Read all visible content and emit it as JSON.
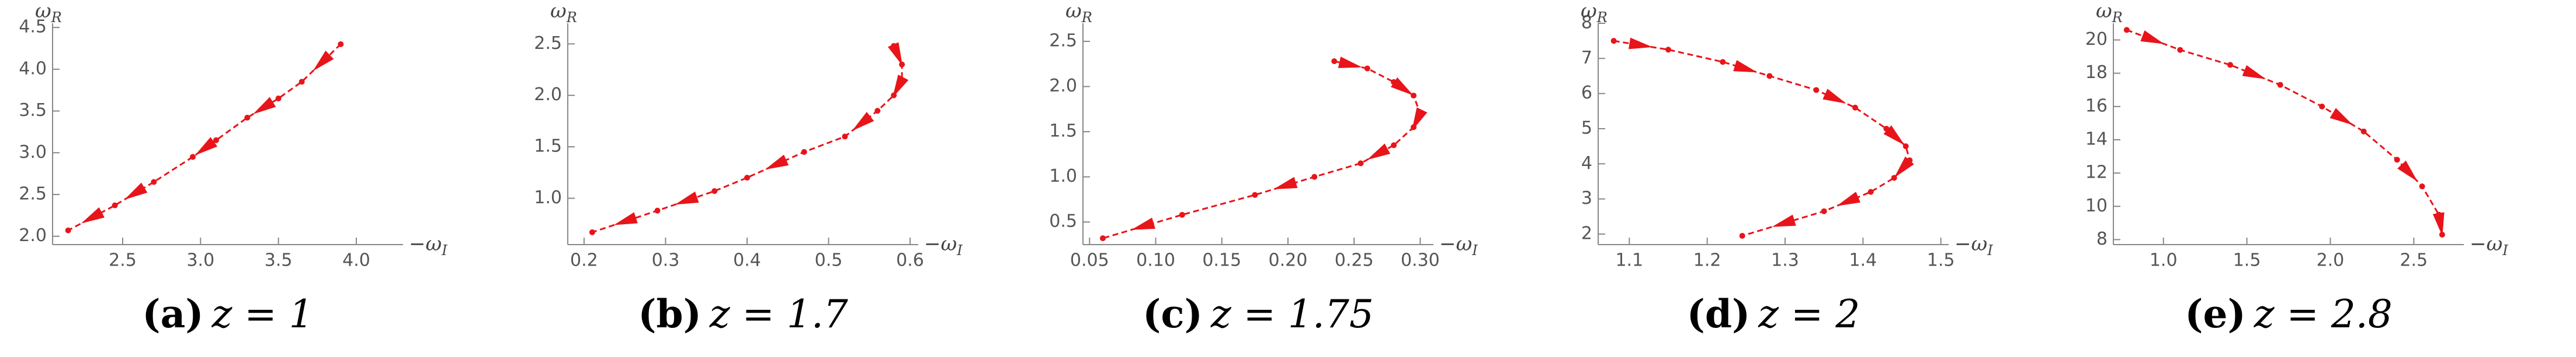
{
  "chart_data": [
    {
      "type": "line",
      "xlabel": {
        "base": "−ω",
        "sub": "I"
      },
      "ylabel": {
        "base": "ω",
        "sub": "R"
      },
      "caption_label": "(a)",
      "caption_math": "z = 1",
      "color": "#e8141a",
      "xlim": [
        2.05,
        4.3
      ],
      "ylim": [
        1.9,
        4.55
      ],
      "xticks": [
        2.5,
        {
          "value": 3,
          "label": "3.0"
        },
        3.5,
        {
          "value": 4,
          "label": "4.0"
        }
      ],
      "yticks": [
        {
          "value": 2,
          "label": "2.0"
        },
        2.5,
        {
          "value": 3,
          "label": "3.0"
        },
        3.5,
        {
          "value": 4,
          "label": "4.0"
        },
        4.5
      ],
      "x": [
        3.9,
        3.65,
        3.5,
        3.3,
        3.1,
        2.95,
        2.7,
        2.45,
        2.15
      ],
      "values": [
        4.3,
        3.85,
        3.65,
        3.42,
        3.15,
        2.95,
        2.65,
        2.37,
        2.07
      ]
    },
    {
      "type": "line",
      "xlabel": {
        "base": "−ω",
        "sub": "I"
      },
      "ylabel": {
        "base": "ω",
        "sub": "R"
      },
      "caption_label": "(b)",
      "caption_math": "z = 1.7",
      "color": "#e8141a",
      "xlim": [
        0.18,
        0.61
      ],
      "ylim": [
        0.55,
        2.7
      ],
      "xticks": [
        0.2,
        0.3,
        0.4,
        0.5,
        0.6
      ],
      "yticks": [
        {
          "value": 1,
          "label": "1.0"
        },
        1.5,
        {
          "value": 2,
          "label": "2.0"
        },
        2.5
      ],
      "x": [
        0.58,
        0.59,
        0.59,
        0.58,
        0.56,
        0.52,
        0.47,
        0.4,
        0.36,
        0.29,
        0.21
      ],
      "values": [
        2.48,
        2.3,
        2.15,
        2.0,
        1.85,
        1.6,
        1.45,
        1.2,
        1.07,
        0.88,
        0.67
      ]
    },
    {
      "type": "line",
      "xlabel": {
        "base": "−ω",
        "sub": "I"
      },
      "ylabel": {
        "base": "ω",
        "sub": "R"
      },
      "caption_label": "(c)",
      "caption_math": "z = 1.75",
      "color": "#e8141a",
      "xlim": [
        0.045,
        0.31
      ],
      "ylim": [
        0.25,
        2.7
      ],
      "xticks": [
        0.05,
        {
          "value": 0.1,
          "label": "0.10"
        },
        0.15,
        {
          "value": 0.2,
          "label": "0.20"
        },
        0.25,
        {
          "value": 0.3,
          "label": "0.30"
        }
      ],
      "yticks": [
        0.5,
        {
          "value": 1,
          "label": "1.0"
        },
        1.5,
        {
          "value": 2,
          "label": "2.0"
        },
        2.5
      ],
      "x": [
        0.235,
        0.26,
        0.28,
        0.295,
        0.3,
        0.295,
        0.28,
        0.255,
        0.22,
        0.175,
        0.12,
        0.06
      ],
      "values": [
        2.28,
        2.2,
        2.05,
        1.9,
        1.7,
        1.55,
        1.35,
        1.15,
        1.0,
        0.8,
        0.58,
        0.32
      ]
    },
    {
      "type": "line",
      "xlabel": {
        "base": "−ω",
        "sub": "I"
      },
      "ylabel": {
        "base": "ω",
        "sub": "R"
      },
      "caption_label": "(d)",
      "caption_math": "z = 2",
      "color": "#e8141a",
      "xlim": [
        1.06,
        1.51
      ],
      "ylim": [
        1.7,
        8
      ],
      "xticks": [
        1.1,
        1.2,
        1.3,
        1.4,
        1.5
      ],
      "yticks": [
        2,
        3,
        4,
        5,
        6,
        7,
        8
      ],
      "x": [
        1.08,
        1.15,
        1.22,
        1.28,
        1.34,
        1.39,
        1.43,
        1.455,
        1.46,
        1.44,
        1.41,
        1.35,
        1.245
      ],
      "values": [
        7.5,
        7.25,
        6.9,
        6.5,
        6.1,
        5.6,
        5.0,
        4.5,
        4.1,
        3.6,
        3.2,
        2.65,
        1.95
      ]
    },
    {
      "type": "line",
      "xlabel": {
        "base": "−ω",
        "sub": "I"
      },
      "ylabel": {
        "base": "ω",
        "sub": "R"
      },
      "caption_label": "(e)",
      "caption_math": "z = 2.8",
      "color": "#e8141a",
      "xlim": [
        0.7,
        2.8
      ],
      "ylim": [
        7.7,
        21
      ],
      "xticks": [
        {
          "value": 1,
          "label": "1.0"
        },
        1.5,
        {
          "value": 2,
          "label": "2.0"
        },
        2.5
      ],
      "yticks": [
        8,
        10,
        12,
        14,
        16,
        18,
        20
      ],
      "x": [
        0.78,
        1.1,
        1.4,
        1.7,
        1.95,
        2.2,
        2.4,
        2.55,
        2.65,
        2.67
      ],
      "values": [
        20.6,
        19.4,
        18.5,
        17.3,
        16.0,
        14.5,
        12.8,
        11.2,
        9.5,
        8.3
      ]
    }
  ]
}
